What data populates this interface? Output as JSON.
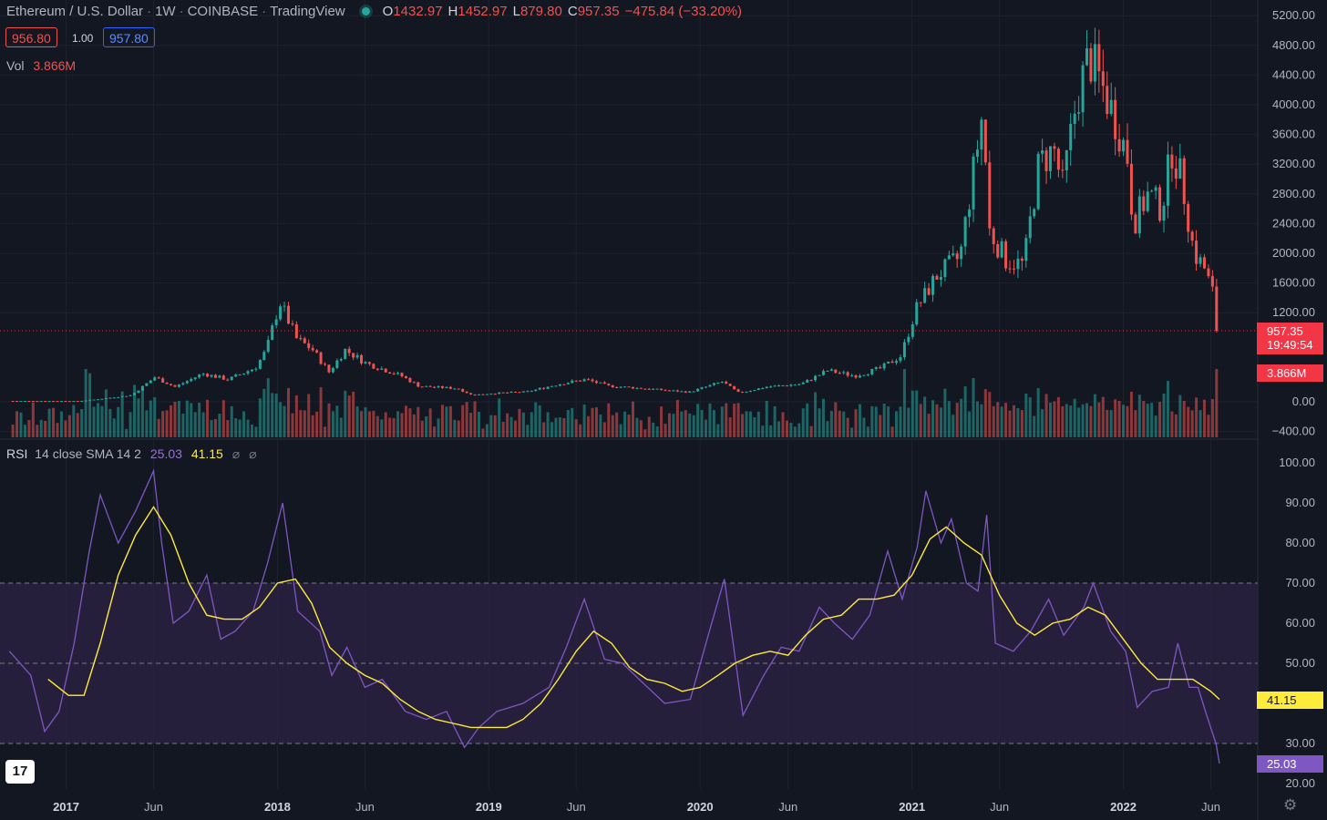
{
  "header": {
    "symbol": "Ethereum / U.S. Dollar",
    "interval": "1W",
    "exchange": "COINBASE",
    "source": "TradingView",
    "open_label": "O",
    "open": "1432.97",
    "high_label": "H",
    "high": "1452.97",
    "low_label": "L",
    "low": "879.80",
    "close_label": "C",
    "close": "957.35",
    "change": "−475.84 (−33.20%)"
  },
  "trade": {
    "sell": "956.80",
    "spread": "1.00",
    "buy": "957.80"
  },
  "volume_legend": {
    "label": "Vol",
    "value": "3.866M"
  },
  "rsi_legend": {
    "label": "RSI",
    "params": "14 close SMA 14 2",
    "rsi_value": "25.03",
    "sma_value": "41.15",
    "hidden1": "⌀",
    "hidden2": "⌀"
  },
  "tags": {
    "price": "957.35",
    "countdown": "19:49:54",
    "volume": "3.866M",
    "sma": "41.15",
    "rsi": "25.03"
  },
  "logo_text": "17",
  "colors": {
    "bg": "#131722",
    "up": "#26a69a",
    "down": "#ef5350",
    "rsi": "#7e57c2",
    "sma": "#ffeb3b",
    "band": "#2a2140"
  },
  "chart_data": [
    {
      "type": "candlestick",
      "title": "Ethereum / U.S. Dollar · 1W · COINBASE",
      "price_ticks": [
        "5200.00",
        "4800.00",
        "4400.00",
        "4000.00",
        "3600.00",
        "3200.00",
        "2800.00",
        "2400.00",
        "2000.00",
        "1600.00",
        "1200.00",
        "0.00",
        "−400.00"
      ],
      "x_ticks": [
        "2017",
        "Jun",
        "2018",
        "Jun",
        "2019",
        "Jun",
        "2020",
        "Jun",
        "2021",
        "Jun",
        "2022",
        "Jun"
      ],
      "last_price": 957.35,
      "ylim": [
        -400,
        5200
      ],
      "close_path": [
        [
          "2016-10-01",
          12
        ],
        [
          "2017-02-01",
          11
        ],
        [
          "2017-03-15",
          45
        ],
        [
          "2017-05-01",
          90
        ],
        [
          "2017-06-10",
          330
        ],
        [
          "2017-07-15",
          200
        ],
        [
          "2017-09-01",
          380
        ],
        [
          "2017-10-15",
          300
        ],
        [
          "2017-12-01",
          460
        ],
        [
          "2017-12-20",
          700
        ],
        [
          "2018-01-12",
          1350
        ],
        [
          "2018-02-10",
          850
        ],
        [
          "2018-03-10",
          700
        ],
        [
          "2018-04-07",
          400
        ],
        [
          "2018-05-05",
          700
        ],
        [
          "2018-06-10",
          520
        ],
        [
          "2018-08-10",
          350
        ],
        [
          "2018-09-10",
          210
        ],
        [
          "2018-11-15",
          180
        ],
        [
          "2018-12-10",
          90
        ],
        [
          "2019-01-15",
          115
        ],
        [
          "2019-03-15",
          135
        ],
        [
          "2019-05-15",
          250
        ],
        [
          "2019-06-25",
          300
        ],
        [
          "2019-08-01",
          215
        ],
        [
          "2019-10-01",
          180
        ],
        [
          "2019-12-20",
          130
        ],
        [
          "2020-02-15",
          270
        ],
        [
          "2020-03-15",
          120
        ],
        [
          "2020-05-01",
          200
        ],
        [
          "2020-07-01",
          240
        ],
        [
          "2020-08-15",
          420
        ],
        [
          "2020-10-01",
          350
        ],
        [
          "2020-11-15",
          450
        ],
        [
          "2020-12-20",
          620
        ],
        [
          "2021-01-15",
          1250
        ],
        [
          "2021-02-20",
          1700
        ],
        [
          "2021-04-01",
          1950
        ],
        [
          "2021-05-10",
          3900
        ],
        [
          "2021-05-22",
          2300
        ],
        [
          "2021-06-20",
          1900
        ],
        [
          "2021-07-20",
          1850
        ],
        [
          "2021-08-15",
          3200
        ],
        [
          "2021-09-10",
          3400
        ],
        [
          "2021-09-25",
          2900
        ],
        [
          "2021-10-20",
          4100
        ],
        [
          "2021-11-10",
          4650
        ],
        [
          "2021-12-05",
          4200
        ],
        [
          "2021-12-30",
          3700
        ],
        [
          "2022-01-15",
          3300
        ],
        [
          "2022-01-25",
          2400
        ],
        [
          "2022-02-20",
          2800
        ],
        [
          "2022-03-15",
          2600
        ],
        [
          "2022-04-02",
          3400
        ],
        [
          "2022-04-20",
          2950
        ],
        [
          "2022-05-10",
          2000
        ],
        [
          "2022-05-28",
          1800
        ],
        [
          "2022-06-12",
          1450
        ],
        [
          "2022-06-16",
          957
        ]
      ]
    },
    {
      "type": "line",
      "title": "RSI 14 close SMA 14 2",
      "ticks": [
        "100.00",
        "90.00",
        "80.00",
        "70.00",
        "60.00",
        "50.00",
        "30.00",
        "20.00"
      ],
      "band": [
        30,
        70
      ],
      "ylim": [
        20,
        100
      ],
      "series": [
        {
          "name": "RSI",
          "points": [
            [
              "2016-09-25",
              53
            ],
            [
              "2016-11-01",
              47
            ],
            [
              "2016-11-25",
              33
            ],
            [
              "2016-12-20",
              38
            ],
            [
              "2017-01-15",
              55
            ],
            [
              "2017-02-10",
              78
            ],
            [
              "2017-03-01",
              92
            ],
            [
              "2017-04-01",
              80
            ],
            [
              "2017-05-01",
              88
            ],
            [
              "2017-06-01",
              98
            ],
            [
              "2017-06-15",
              80
            ],
            [
              "2017-07-05",
              60
            ],
            [
              "2017-08-01",
              63
            ],
            [
              "2017-09-01",
              72
            ],
            [
              "2017-09-25",
              56
            ],
            [
              "2017-10-20",
              58
            ],
            [
              "2017-11-20",
              63
            ],
            [
              "2017-12-15",
              75
            ],
            [
              "2018-01-10",
              90
            ],
            [
              "2018-02-05",
              63
            ],
            [
              "2018-03-15",
              58
            ],
            [
              "2018-04-05",
              47
            ],
            [
              "2018-05-01",
              54
            ],
            [
              "2018-06-01",
              44
            ],
            [
              "2018-07-01",
              46
            ],
            [
              "2018-08-10",
              38
            ],
            [
              "2018-09-15",
              36
            ],
            [
              "2018-10-20",
              38
            ],
            [
              "2018-11-20",
              29
            ],
            [
              "2018-12-15",
              34
            ],
            [
              "2019-01-15",
              38
            ],
            [
              "2019-03-01",
              40
            ],
            [
              "2019-04-15",
              44
            ],
            [
              "2019-05-15",
              54
            ],
            [
              "2019-06-15",
              66
            ],
            [
              "2019-07-20",
              51
            ],
            [
              "2019-08-20",
              50
            ],
            [
              "2019-09-25",
              45
            ],
            [
              "2019-11-01",
              40
            ],
            [
              "2019-12-15",
              41
            ],
            [
              "2020-01-15",
              57
            ],
            [
              "2020-02-12",
              71
            ],
            [
              "2020-03-15",
              37
            ],
            [
              "2020-04-20",
              47
            ],
            [
              "2020-05-20",
              54
            ],
            [
              "2020-06-20",
              53
            ],
            [
              "2020-07-25",
              64
            ],
            [
              "2020-08-20",
              60
            ],
            [
              "2020-09-20",
              56
            ],
            [
              "2020-10-20",
              62
            ],
            [
              "2020-11-20",
              78
            ],
            [
              "2020-12-15",
              66
            ],
            [
              "2021-01-10",
              79
            ],
            [
              "2021-01-25",
              93
            ],
            [
              "2021-02-20",
              80
            ],
            [
              "2021-03-10",
              86
            ],
            [
              "2021-04-05",
              70
            ],
            [
              "2021-04-25",
              68
            ],
            [
              "2021-05-10",
              87
            ],
            [
              "2021-05-25",
              55
            ],
            [
              "2021-06-25",
              53
            ],
            [
              "2021-07-25",
              58
            ],
            [
              "2021-08-25",
              66
            ],
            [
              "2021-09-20",
              57
            ],
            [
              "2021-10-25",
              64
            ],
            [
              "2021-11-10",
              70
            ],
            [
              "2021-12-10",
              58
            ],
            [
              "2022-01-05",
              53
            ],
            [
              "2022-01-25",
              39
            ],
            [
              "2022-02-20",
              43
            ],
            [
              "2022-03-20",
              44
            ],
            [
              "2022-04-05",
              55
            ],
            [
              "2022-04-25",
              44
            ],
            [
              "2022-05-10",
              44
            ],
            [
              "2022-05-25",
              37
            ],
            [
              "2022-06-10",
              30
            ],
            [
              "2022-06-16",
              25
            ]
          ]
        },
        {
          "name": "SMA",
          "points": [
            [
              "2016-12-01",
              46
            ],
            [
              "2017-01-05",
              42
            ],
            [
              "2017-02-01",
              42
            ],
            [
              "2017-03-01",
              55
            ],
            [
              "2017-04-01",
              72
            ],
            [
              "2017-05-01",
              82
            ],
            [
              "2017-06-01",
              89
            ],
            [
              "2017-07-01",
              82
            ],
            [
              "2017-08-01",
              70
            ],
            [
              "2017-09-01",
              62
            ],
            [
              "2017-10-01",
              61
            ],
            [
              "2017-11-01",
              61
            ],
            [
              "2017-12-01",
              64
            ],
            [
              "2018-01-01",
              70
            ],
            [
              "2018-02-01",
              71
            ],
            [
              "2018-03-01",
              65
            ],
            [
              "2018-04-01",
              54
            ],
            [
              "2018-05-01",
              50
            ],
            [
              "2018-06-01",
              47
            ],
            [
              "2018-07-01",
              45
            ],
            [
              "2018-08-01",
              41
            ],
            [
              "2018-09-01",
              38
            ],
            [
              "2018-10-01",
              36
            ],
            [
              "2018-11-01",
              35
            ],
            [
              "2018-12-01",
              34
            ],
            [
              "2019-01-01",
              34
            ],
            [
              "2019-02-01",
              34
            ],
            [
              "2019-03-01",
              36
            ],
            [
              "2019-04-01",
              40
            ],
            [
              "2019-05-01",
              46
            ],
            [
              "2019-06-01",
              53
            ],
            [
              "2019-07-01",
              58
            ],
            [
              "2019-08-01",
              55
            ],
            [
              "2019-09-01",
              49
            ],
            [
              "2019-10-01",
              46
            ],
            [
              "2019-11-01",
              45
            ],
            [
              "2019-12-01",
              43
            ],
            [
              "2020-01-01",
              44
            ],
            [
              "2020-02-01",
              47
            ],
            [
              "2020-03-01",
              50
            ],
            [
              "2020-04-01",
              52
            ],
            [
              "2020-05-01",
              53
            ],
            [
              "2020-06-01",
              52
            ],
            [
              "2020-07-01",
              57
            ],
            [
              "2020-08-01",
              61
            ],
            [
              "2020-09-01",
              62
            ],
            [
              "2020-10-01",
              66
            ],
            [
              "2020-11-01",
              66
            ],
            [
              "2020-12-01",
              67
            ],
            [
              "2021-01-01",
              72
            ],
            [
              "2021-02-01",
              81
            ],
            [
              "2021-03-01",
              84
            ],
            [
              "2021-04-01",
              80
            ],
            [
              "2021-05-01",
              77
            ],
            [
              "2021-06-01",
              67
            ],
            [
              "2021-07-01",
              60
            ],
            [
              "2021-08-01",
              57
            ],
            [
              "2021-09-01",
              60
            ],
            [
              "2021-10-01",
              61
            ],
            [
              "2021-11-01",
              64
            ],
            [
              "2021-12-01",
              62
            ],
            [
              "2022-01-01",
              56
            ],
            [
              "2022-02-01",
              50
            ],
            [
              "2022-03-01",
              46
            ],
            [
              "2022-04-01",
              46
            ],
            [
              "2022-05-01",
              46
            ],
            [
              "2022-06-01",
              43
            ],
            [
              "2022-06-16",
              41
            ]
          ]
        }
      ]
    }
  ]
}
